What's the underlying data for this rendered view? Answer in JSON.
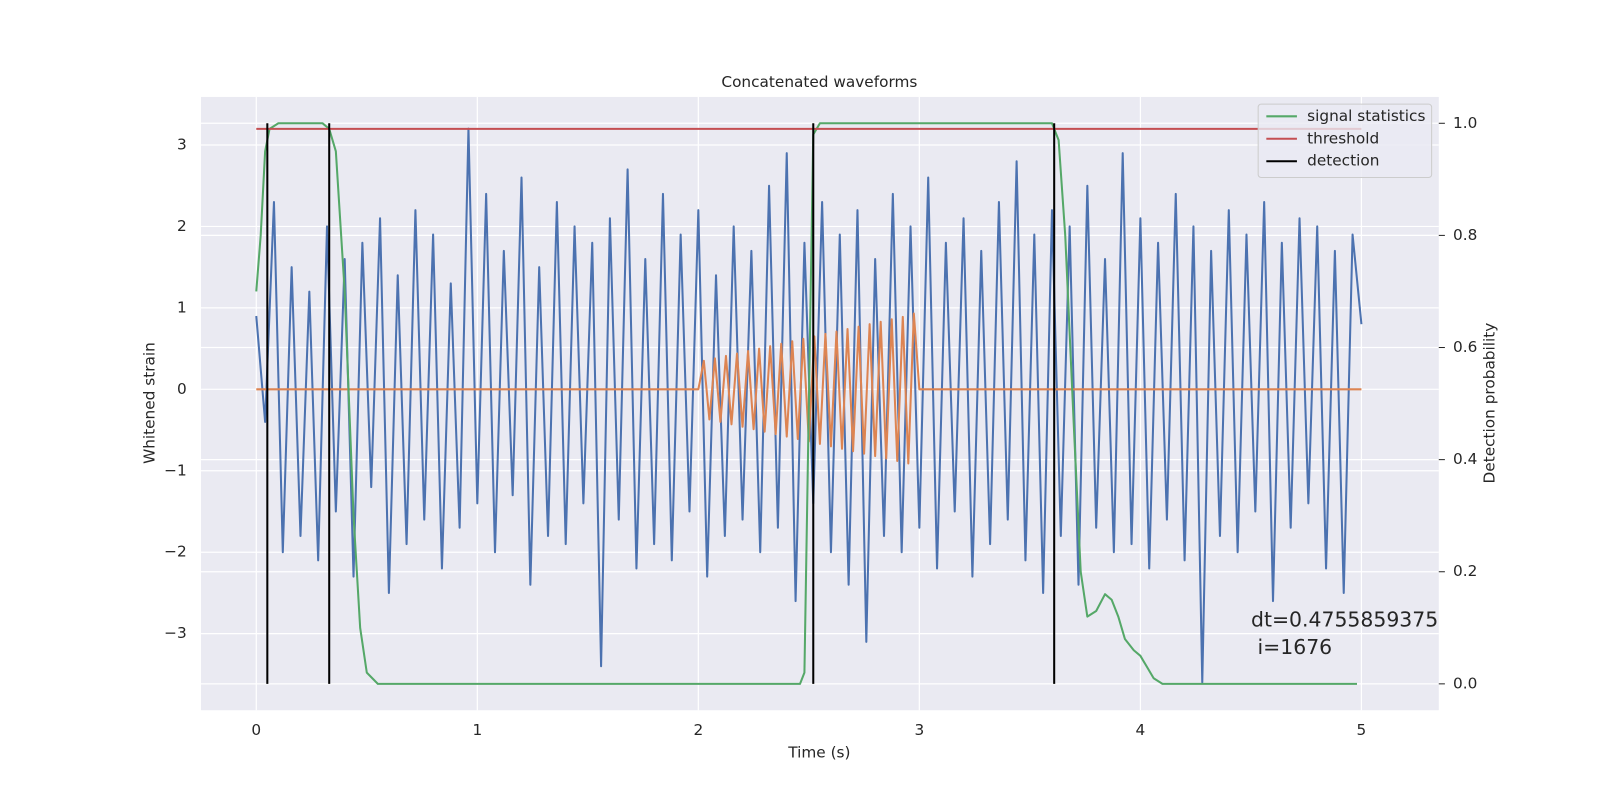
{
  "chart_data": {
    "type": "line",
    "title": "Concatenated waveforms",
    "x_label": "Time (s)",
    "y_label": "Whitened strain",
    "y2_label": "Detection probability",
    "xlim": [
      -0.25,
      5.35
    ],
    "ylim": [
      -3.94,
      3.59
    ],
    "y2lim": [
      -0.047,
      1.047
    ],
    "xticks": [
      0,
      1,
      2,
      3,
      4,
      5
    ],
    "yticks": [
      {
        "value": -3,
        "label": "−3"
      },
      {
        "value": -2,
        "label": "−2"
      },
      {
        "value": -1,
        "label": "−1"
      },
      0,
      1,
      2,
      3
    ],
    "y2ticks": [
      {
        "value": 0,
        "label": "0.0"
      },
      0.2,
      0.4,
      0.6,
      0.8,
      {
        "value": 1,
        "label": "1.0"
      }
    ],
    "grid": true,
    "legend": "upper right",
    "annotation": [
      "dt=0.4755859375",
      " i=1676"
    ],
    "series": [
      {
        "color": "#4c72b0",
        "kind": "line",
        "x": [
          0,
          0.04,
          0.08,
          0.12,
          0.16,
          0.2,
          0.24,
          0.28,
          0.32,
          0.36,
          0.4,
          0.44,
          0.48,
          0.52,
          0.56,
          0.6,
          0.64,
          0.68,
          0.72,
          0.76,
          0.8,
          0.84,
          0.88,
          0.92,
          0.96,
          1,
          1.04,
          1.08,
          1.12,
          1.16,
          1.2,
          1.24,
          1.28,
          1.32,
          1.36,
          1.4,
          1.44,
          1.48,
          1.52,
          1.56,
          1.6,
          1.64,
          1.68,
          1.72,
          1.76,
          1.8,
          1.84,
          1.88,
          1.92,
          1.96,
          2,
          2.04,
          2.08,
          2.12,
          2.16,
          2.2,
          2.24,
          2.28,
          2.32,
          2.36,
          2.4,
          2.44,
          2.48,
          2.52,
          2.56,
          2.6,
          2.64,
          2.68,
          2.72,
          2.76,
          2.8,
          2.84,
          2.88,
          2.92,
          2.96,
          3,
          3.04,
          3.08,
          3.12,
          3.16,
          3.2,
          3.24,
          3.28,
          3.32,
          3.36,
          3.4,
          3.44,
          3.48,
          3.52,
          3.56,
          3.6,
          3.64,
          3.68,
          3.72,
          3.76,
          3.8,
          3.84,
          3.88,
          3.92,
          3.96,
          4,
          4.04,
          4.08,
          4.12,
          4.16,
          4.2,
          4.24,
          4.28,
          4.32,
          4.36,
          4.4,
          4.44,
          4.48,
          4.52,
          4.56,
          4.6,
          4.64,
          4.68,
          4.72,
          4.76,
          4.8,
          4.84,
          4.88,
          4.92,
          4.96,
          5
        ],
        "values": [
          0.9,
          -0.4,
          2.3,
          -2.0,
          1.5,
          -1.8,
          1.2,
          -2.1,
          2.0,
          -1.5,
          1.6,
          -2.3,
          1.8,
          -1.2,
          2.1,
          -2.5,
          1.4,
          -1.9,
          2.2,
          -1.6,
          1.9,
          -2.2,
          1.3,
          -1.7,
          3.2,
          -1.4,
          2.4,
          -2.0,
          1.7,
          -1.3,
          2.6,
          -2.4,
          1.5,
          -1.8,
          2.3,
          -1.9,
          2.0,
          -1.4,
          1.8,
          -3.4,
          2.1,
          -1.6,
          2.7,
          -2.2,
          1.6,
          -1.9,
          2.4,
          -2.1,
          1.9,
          -1.5,
          2.2,
          -2.3,
          1.4,
          -1.8,
          2.0,
          -1.6,
          1.7,
          -2.0,
          2.5,
          -1.7,
          2.9,
          -2.6,
          1.8,
          -1.4,
          2.3,
          -2.0,
          1.9,
          -2.4,
          2.2,
          -3.1,
          1.6,
          -1.8,
          2.4,
          -2.0,
          2.0,
          -1.7,
          2.6,
          -2.2,
          1.8,
          -1.5,
          2.1,
          -2.3,
          1.7,
          -1.9,
          2.3,
          -1.6,
          2.8,
          -2.1,
          1.9,
          -2.5,
          2.2,
          -1.8,
          2.0,
          -2.4,
          2.5,
          -1.7,
          1.6,
          -2.0,
          2.9,
          -1.9,
          2.1,
          -2.2,
          1.8,
          -1.6,
          2.4,
          -2.1,
          2.0,
          -3.6,
          1.7,
          -1.8,
          2.2,
          -2.0,
          1.9,
          -1.5,
          2.3,
          -2.6,
          1.8,
          -1.7,
          2.1,
          -1.4,
          2.0,
          -2.2,
          1.7,
          -2.5,
          1.9,
          0.8
        ]
      },
      {
        "color": "#dd8452",
        "kind": "line",
        "x": [
          0,
          2,
          2.025,
          2.05,
          2.075,
          2.1,
          2.125,
          2.15,
          2.175,
          2.2,
          2.225,
          2.25,
          2.275,
          2.3,
          2.325,
          2.35,
          2.375,
          2.4,
          2.425,
          2.45,
          2.475,
          2.5,
          2.525,
          2.55,
          2.575,
          2.6,
          2.625,
          2.65,
          2.675,
          2.7,
          2.725,
          2.75,
          2.775,
          2.8,
          2.825,
          2.85,
          2.875,
          2.9,
          2.925,
          2.95,
          2.975,
          3,
          5
        ],
        "values": [
          0,
          0,
          0.35,
          -0.37,
          0.38,
          -0.4,
          0.41,
          -0.43,
          0.44,
          -0.46,
          0.47,
          -0.49,
          0.5,
          -0.52,
          0.53,
          -0.55,
          0.56,
          -0.58,
          0.59,
          -0.61,
          0.62,
          -0.64,
          0.65,
          -0.67,
          0.68,
          -0.7,
          0.71,
          -0.73,
          0.74,
          -0.76,
          0.77,
          -0.79,
          0.8,
          -0.82,
          0.83,
          -0.85,
          0.86,
          -0.88,
          0.89,
          -0.91,
          0.93,
          0,
          0
        ]
      },
      {
        "name": "signal statistics",
        "color": "#55a868",
        "kind": "line",
        "axis": "y2",
        "x": [
          0,
          0.02,
          0.04,
          0.06,
          0.1,
          0.3,
          0.33,
          0.36,
          0.4,
          0.44,
          0.47,
          0.5,
          0.55,
          1.0,
          2.0,
          2.46,
          2.48,
          2.5,
          2.52,
          2.55,
          3.0,
          3.6,
          3.63,
          3.66,
          3.7,
          3.73,
          3.76,
          3.8,
          3.84,
          3.87,
          3.9,
          3.93,
          3.97,
          4.0,
          4.03,
          4.06,
          4.1,
          4.5,
          4.98
        ],
        "values": [
          0.7,
          0.8,
          0.95,
          0.99,
          1.0,
          1.0,
          0.99,
          0.95,
          0.7,
          0.3,
          0.1,
          0.02,
          0.0,
          0.0,
          0.0,
          0.0,
          0.02,
          0.5,
          0.98,
          1.0,
          1.0,
          1.0,
          0.97,
          0.8,
          0.45,
          0.2,
          0.12,
          0.13,
          0.16,
          0.15,
          0.12,
          0.08,
          0.06,
          0.05,
          0.03,
          0.01,
          0.0,
          0.0,
          0.0
        ]
      },
      {
        "name": "threshold",
        "color": "#c44e52",
        "kind": "line",
        "axis": "y2",
        "x": [
          0,
          5
        ],
        "values": [
          0.99,
          0.99
        ]
      },
      {
        "name": "detection",
        "color": "#000000",
        "kind": "vlines",
        "axis": "y2",
        "x": [
          0.05,
          0.33,
          2.52,
          3.61
        ],
        "values": [
          1,
          1,
          1,
          1
        ]
      }
    ]
  }
}
